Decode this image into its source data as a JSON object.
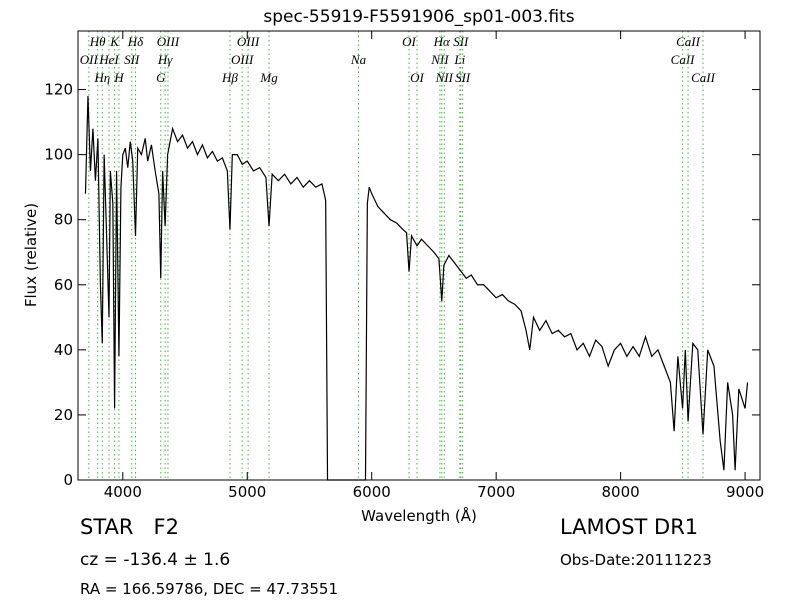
{
  "chart_data": {
    "type": "line",
    "title": "spec-55919-F5591906_sp01-003.fits",
    "x_label": "Wavelength (Å)",
    "y_label": "Flux (relative)",
    "xlim": [
      3640,
      9120
    ],
    "ylim": [
      0,
      138
    ],
    "xticks": [
      4000,
      5000,
      6000,
      7000,
      8000,
      9000
    ],
    "yticks": [
      0,
      20,
      40,
      60,
      80,
      100,
      120
    ],
    "line_marker_color": "#4daf4a",
    "x": [
      3700,
      3720,
      3740,
      3760,
      3780,
      3800,
      3820,
      3835,
      3850,
      3870,
      3889,
      3900,
      3920,
      3934,
      3950,
      3969,
      3985,
      4000,
      4020,
      4040,
      4060,
      4080,
      4102,
      4120,
      4150,
      4180,
      4200,
      4230,
      4260,
      4290,
      4305,
      4320,
      4340,
      4360,
      4400,
      4440,
      4480,
      4520,
      4560,
      4600,
      4640,
      4680,
      4720,
      4760,
      4800,
      4840,
      4861,
      4880,
      4920,
      4960,
      5000,
      5050,
      5100,
      5150,
      5175,
      5200,
      5250,
      5300,
      5350,
      5400,
      5450,
      5500,
      5550,
      5600,
      5630,
      5645,
      5700,
      5800,
      5900,
      5950,
      5965,
      5980,
      6000,
      6050,
      6100,
      6150,
      6200,
      6250,
      6280,
      6300,
      6320,
      6364,
      6400,
      6450,
      6500,
      6540,
      6563,
      6580,
      6620,
      6680,
      6720,
      6760,
      6800,
      6850,
      6900,
      6950,
      7000,
      7050,
      7100,
      7150,
      7200,
      7240,
      7270,
      7300,
      7350,
      7400,
      7450,
      7500,
      7550,
      7600,
      7650,
      7700,
      7750,
      7800,
      7850,
      7900,
      7950,
      8000,
      8050,
      8100,
      8150,
      8200,
      8250,
      8300,
      8350,
      8400,
      8430,
      8460,
      8498,
      8520,
      8542,
      8580,
      8620,
      8662,
      8700,
      8750,
      8800,
      8830,
      8860,
      8900,
      8920,
      8950,
      9000,
      9020
    ],
    "series": [
      {
        "color": "#000000",
        "values": [
          88,
          118,
          95,
          108,
          92,
          105,
          60,
          42,
          100,
          75,
          50,
          95,
          85,
          22,
          95,
          38,
          90,
          100,
          102,
          96,
          104,
          98,
          75,
          102,
          100,
          105,
          98,
          103,
          95,
          88,
          62,
          95,
          78,
          100,
          108,
          104,
          106,
          102,
          104,
          100,
          103,
          99,
          101,
          98,
          99,
          95,
          77,
          100,
          100,
          97,
          98,
          95,
          96,
          93,
          78,
          94,
          92,
          94,
          91,
          93,
          90,
          92,
          90,
          91,
          86,
          0,
          0,
          0,
          0,
          0,
          85,
          90,
          88,
          84,
          82,
          80,
          79,
          77,
          76,
          64,
          75,
          72,
          74,
          72,
          70,
          68,
          55,
          66,
          69,
          66,
          64,
          62,
          63,
          60,
          60,
          58,
          56,
          57,
          55,
          54,
          52,
          46,
          40,
          50,
          46,
          49,
          45,
          46,
          44,
          45,
          40,
          42,
          38,
          43,
          41,
          35,
          40,
          42,
          38,
          41,
          38,
          44,
          38,
          40,
          35,
          30,
          15,
          38,
          22,
          40,
          18,
          42,
          40,
          14,
          40,
          35,
          12,
          3,
          30,
          20,
          3,
          28,
          22,
          30
        ]
      }
    ],
    "lines": [
      {
        "label": "Hθ",
        "wavelength": 3798
      },
      {
        "label": "OII",
        "wavelength": 3727
      },
      {
        "label": "Hη",
        "wavelength": 3835
      },
      {
        "label": "HeI",
        "wavelength": 3889
      },
      {
        "label": "K",
        "wavelength": 3934
      },
      {
        "label": "H",
        "wavelength": 3969
      },
      {
        "label": "SII",
        "wavelength": 4072
      },
      {
        "label": "Hδ",
        "wavelength": 4102
      },
      {
        "label": "G",
        "wavelength": 4305
      },
      {
        "label": "Hγ",
        "wavelength": 4340
      },
      {
        "label": "OIII",
        "wavelength": 4363
      },
      {
        "label": "Hβ",
        "wavelength": 4861
      },
      {
        "label": "OIII",
        "wavelength": 4959
      },
      {
        "label": "OIII",
        "wavelength": 5007
      },
      {
        "label": "Mg",
        "wavelength": 5175
      },
      {
        "label": "Na",
        "wavelength": 5894
      },
      {
        "label": "OI",
        "wavelength": 6300
      },
      {
        "label": "OI",
        "wavelength": 6364
      },
      {
        "label": "NII",
        "wavelength": 6548
      },
      {
        "label": "Hα",
        "wavelength": 6563
      },
      {
        "label": "NII",
        "wavelength": 6583
      },
      {
        "label": "Li",
        "wavelength": 6708
      },
      {
        "label": "SII",
        "wavelength": 6716
      },
      {
        "label": "SII",
        "wavelength": 6731
      },
      {
        "label": "CaII",
        "wavelength": 8498
      },
      {
        "label": "CaII",
        "wavelength": 8542
      },
      {
        "label": "CaII",
        "wavelength": 8662
      }
    ]
  },
  "info": {
    "object": "STAR   F2",
    "cz": "cz = -136.4 ± 1.6",
    "coords": "RA = 166.59786, DEC = 47.73551",
    "survey": "LAMOST DR1",
    "obs_date": "Obs-Date:20111223"
  }
}
